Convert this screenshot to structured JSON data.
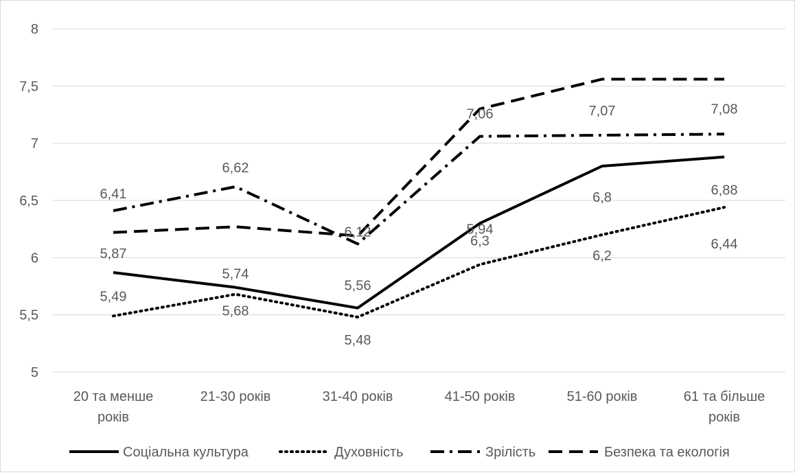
{
  "chart_data": {
    "type": "line",
    "categories": [
      [
        "20 та менше",
        "років"
      ],
      [
        "21-30 років"
      ],
      [
        "31-40 років"
      ],
      [
        "41-50 років"
      ],
      [
        "51-60 років"
      ],
      [
        "61 та більше",
        "років"
      ]
    ],
    "ylim": [
      5,
      8
    ],
    "yticks": [
      "5",
      "5,5",
      "6",
      "6,5",
      "7",
      "7,5",
      "8"
    ],
    "grid": true,
    "legend_position": "bottom",
    "series": [
      {
        "name": "Соціальна культура",
        "style": "solid",
        "values": [
          5.87,
          5.74,
          5.56,
          6.3,
          6.8,
          6.88
        ],
        "labels": [
          "5,87",
          "5,74",
          "5,56",
          "6,3",
          "6,8",
          "6,88"
        ]
      },
      {
        "name": "Духовність",
        "style": "dotted",
        "values": [
          5.49,
          5.68,
          5.48,
          5.94,
          6.2,
          6.44
        ],
        "labels": [
          "5,49",
          "5,68",
          "5,48",
          "5,94",
          "6,2",
          "6,44"
        ]
      },
      {
        "name": "Зрілість",
        "style": "dashdot",
        "values": [
          6.41,
          6.62,
          6.12,
          7.06,
          7.07,
          7.08
        ],
        "labels": [
          "6,41",
          "6,62",
          "6,12",
          "7,06",
          "7,07",
          "7,08"
        ]
      },
      {
        "name": "Безпека та екологія",
        "style": "dashed",
        "values": [
          6.22,
          6.27,
          6.19,
          7.3,
          7.56,
          7.56
        ],
        "labels": []
      }
    ],
    "colors": {
      "line": "#000000",
      "grid": "#d9d9d9",
      "text": "#595959"
    }
  }
}
